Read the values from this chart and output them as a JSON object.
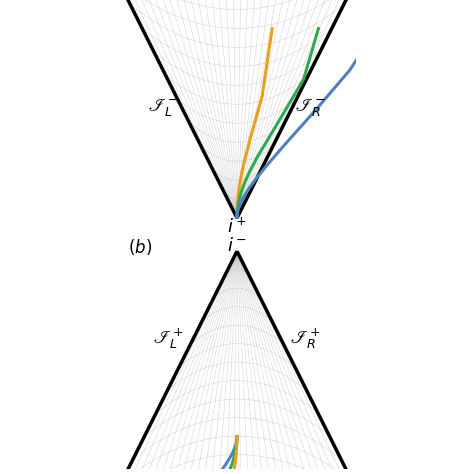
{
  "background_color": "#ffffff",
  "grid_color": "#bbbbbb",
  "grid_alpha": 0.6,
  "grid_lw": 0.4,
  "boundary_lw": 2.5,
  "n_radial": 30,
  "n_arc": 15,
  "colors": {
    "orange": "#e8a020",
    "blue": "#5080c0",
    "green": "#30aa50"
  },
  "label_fontsize": 13,
  "annotation_fontsize": 12,
  "worldline_lw": 2.2
}
